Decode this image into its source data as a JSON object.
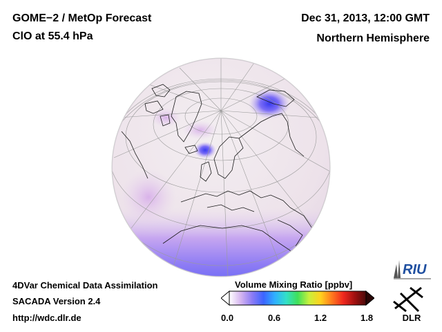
{
  "header": {
    "title_line1": "GOME−2 / MetOp Forecast",
    "title_line2": "ClO at 55.4 hPa",
    "date": "Dec 31, 2013, 12:00 GMT",
    "region": "Northern Hemisphere"
  },
  "footer": {
    "method": "4DVar Chemical Data Assimilation",
    "version": "SACADA Version 2.4",
    "url": "http://wdc.dlr.de"
  },
  "colorbar": {
    "title": "Volume Mixing Ratio [ppbv]",
    "ticks": [
      "0.0",
      "0.6",
      "1.2",
      "1.8"
    ],
    "stops": [
      "#ffffff",
      "#d6b6f0",
      "#8c7cf5",
      "#3c64ff",
      "#2fb0ff",
      "#33e0c8",
      "#3fe05a",
      "#c8f03c",
      "#ffd21e",
      "#ff7a1e",
      "#f0281e",
      "#a01010",
      "#4a0a0a"
    ]
  },
  "logos": {
    "riu": "RIU",
    "dlr": "DLR"
  },
  "map": {
    "background_color": "#efe8ec",
    "projection": "orthographic",
    "center": "North Pole"
  }
}
